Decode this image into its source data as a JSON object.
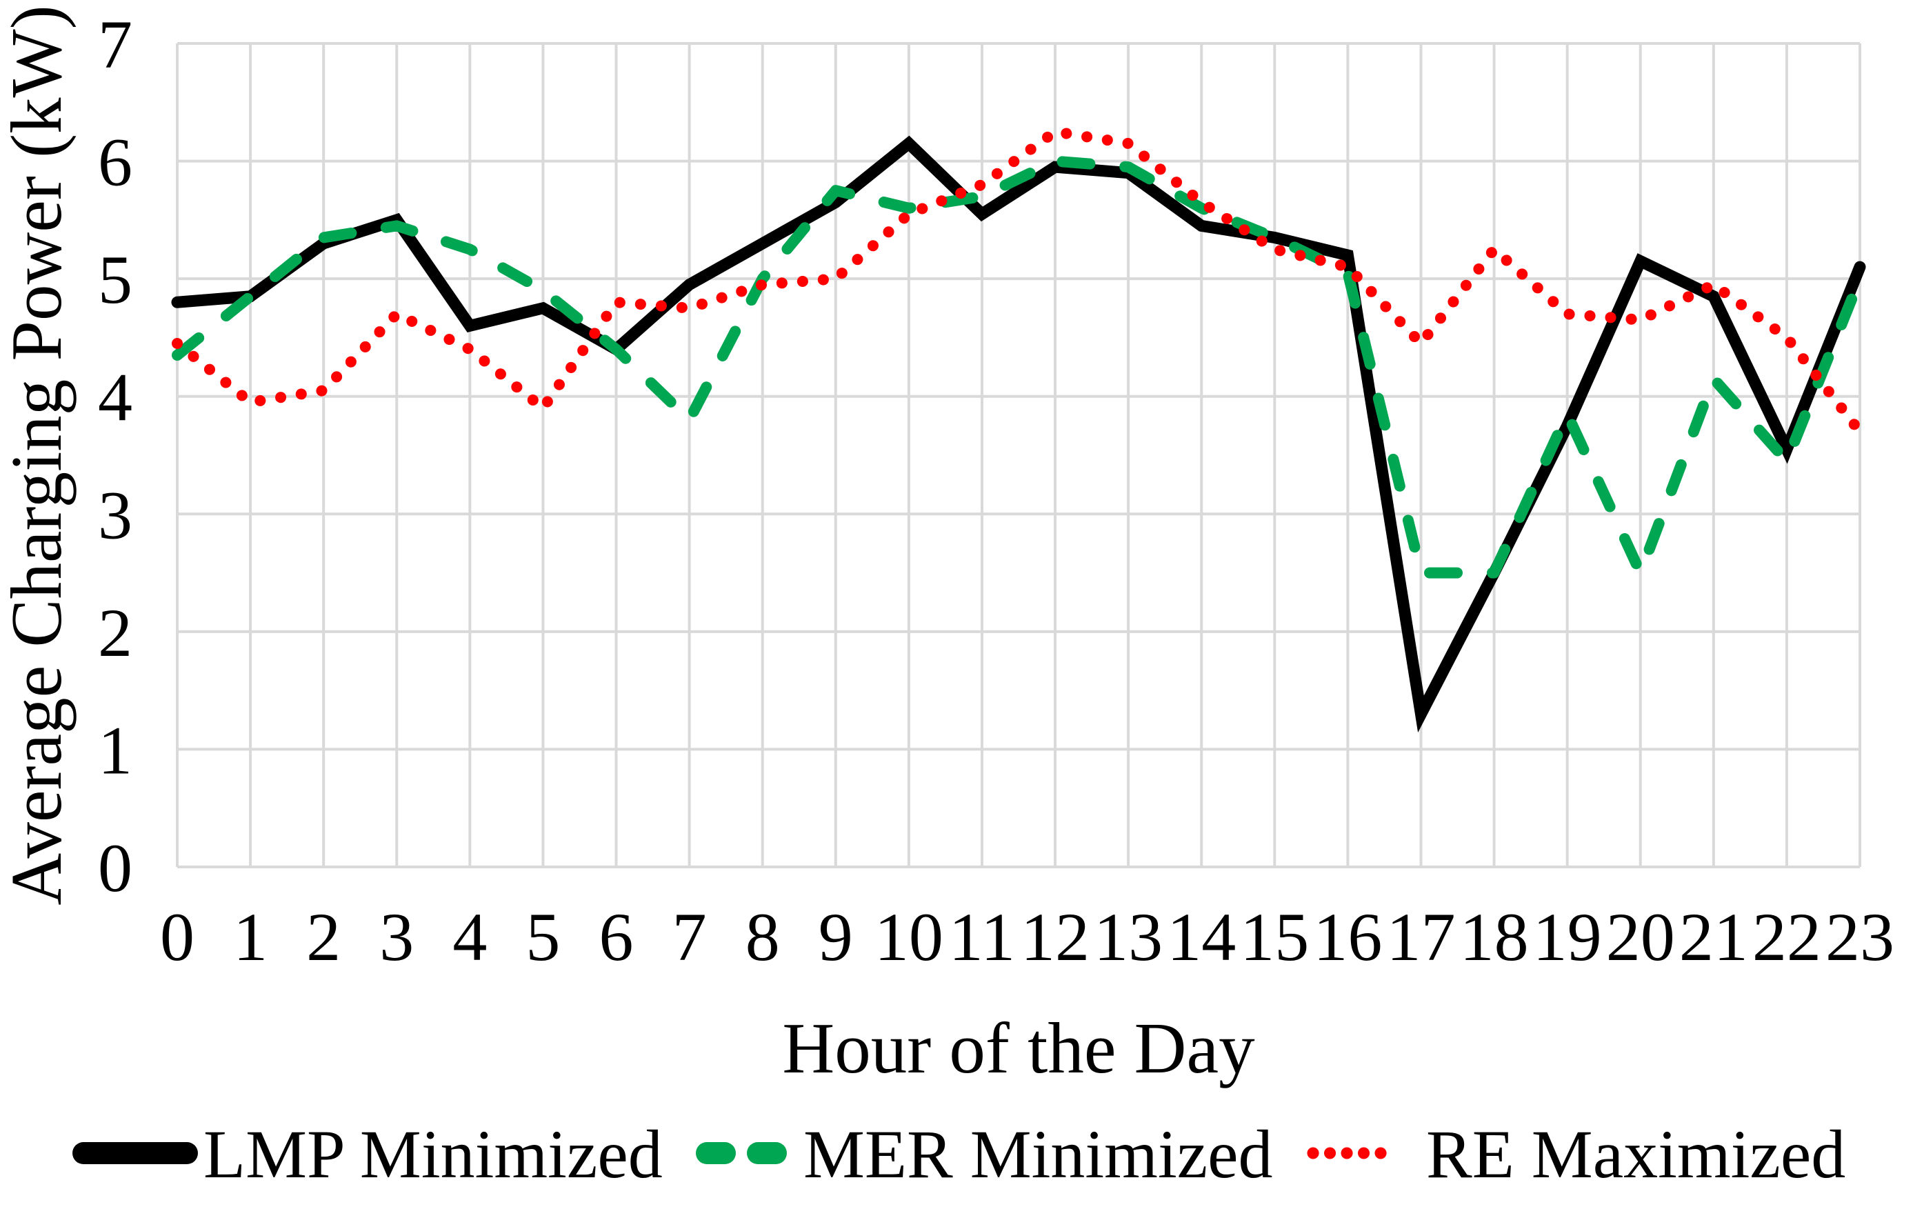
{
  "figure": {
    "background": "#FFFFFF",
    "grid_color": "#D9D9D9",
    "text_color": "#000000"
  },
  "chart_data": {
    "type": "line",
    "title": "",
    "xlabel": "Hour of the Day",
    "ylabel": "Average Charging Power (kW)",
    "x": [
      0,
      1,
      2,
      3,
      4,
      5,
      6,
      7,
      8,
      9,
      10,
      11,
      12,
      13,
      14,
      15,
      16,
      17,
      18,
      19,
      20,
      21,
      22,
      23
    ],
    "xticks": [
      "0",
      "1",
      "2",
      "3",
      "4",
      "5",
      "6",
      "7",
      "8",
      "9",
      "10",
      "11",
      "12",
      "13",
      "14",
      "15",
      "16",
      "17",
      "18",
      "19",
      "20",
      "21",
      "22",
      "23"
    ],
    "yticks": [
      "0",
      "1",
      "2",
      "3",
      "4",
      "5",
      "6",
      "7"
    ],
    "ylim": [
      0,
      7
    ],
    "xlim": [
      0,
      23
    ],
    "grid": true,
    "legend_position": "bottom",
    "series": [
      {
        "name": "LMP Minimized",
        "color": "#000000",
        "line_style": "solid",
        "values": [
          4.8,
          4.85,
          5.3,
          5.5,
          4.6,
          4.75,
          4.4,
          4.95,
          5.3,
          5.65,
          6.15,
          5.55,
          5.95,
          5.9,
          5.45,
          5.35,
          5.2,
          1.3,
          2.5,
          3.75,
          5.15,
          4.85,
          3.55,
          5.1
        ]
      },
      {
        "name": "MER Minimized",
        "color": "#00A651",
        "line_style": "dashed",
        "values": [
          4.35,
          4.85,
          5.35,
          5.45,
          5.25,
          4.9,
          4.4,
          3.8,
          5.0,
          5.75,
          5.6,
          5.7,
          6.0,
          5.95,
          5.6,
          5.35,
          5.05,
          2.5,
          2.5,
          3.85,
          2.5,
          4.15,
          3.45,
          5.0
        ]
      },
      {
        "name": "RE Maximized",
        "color": "#FF0000",
        "line_style": "dotted",
        "values": [
          4.45,
          3.95,
          4.05,
          4.7,
          4.4,
          3.9,
          4.8,
          4.75,
          4.95,
          5.0,
          5.55,
          5.8,
          6.25,
          6.15,
          5.65,
          5.25,
          5.1,
          4.45,
          5.25,
          4.7,
          4.65,
          4.95,
          4.5,
          3.7
        ]
      }
    ]
  }
}
